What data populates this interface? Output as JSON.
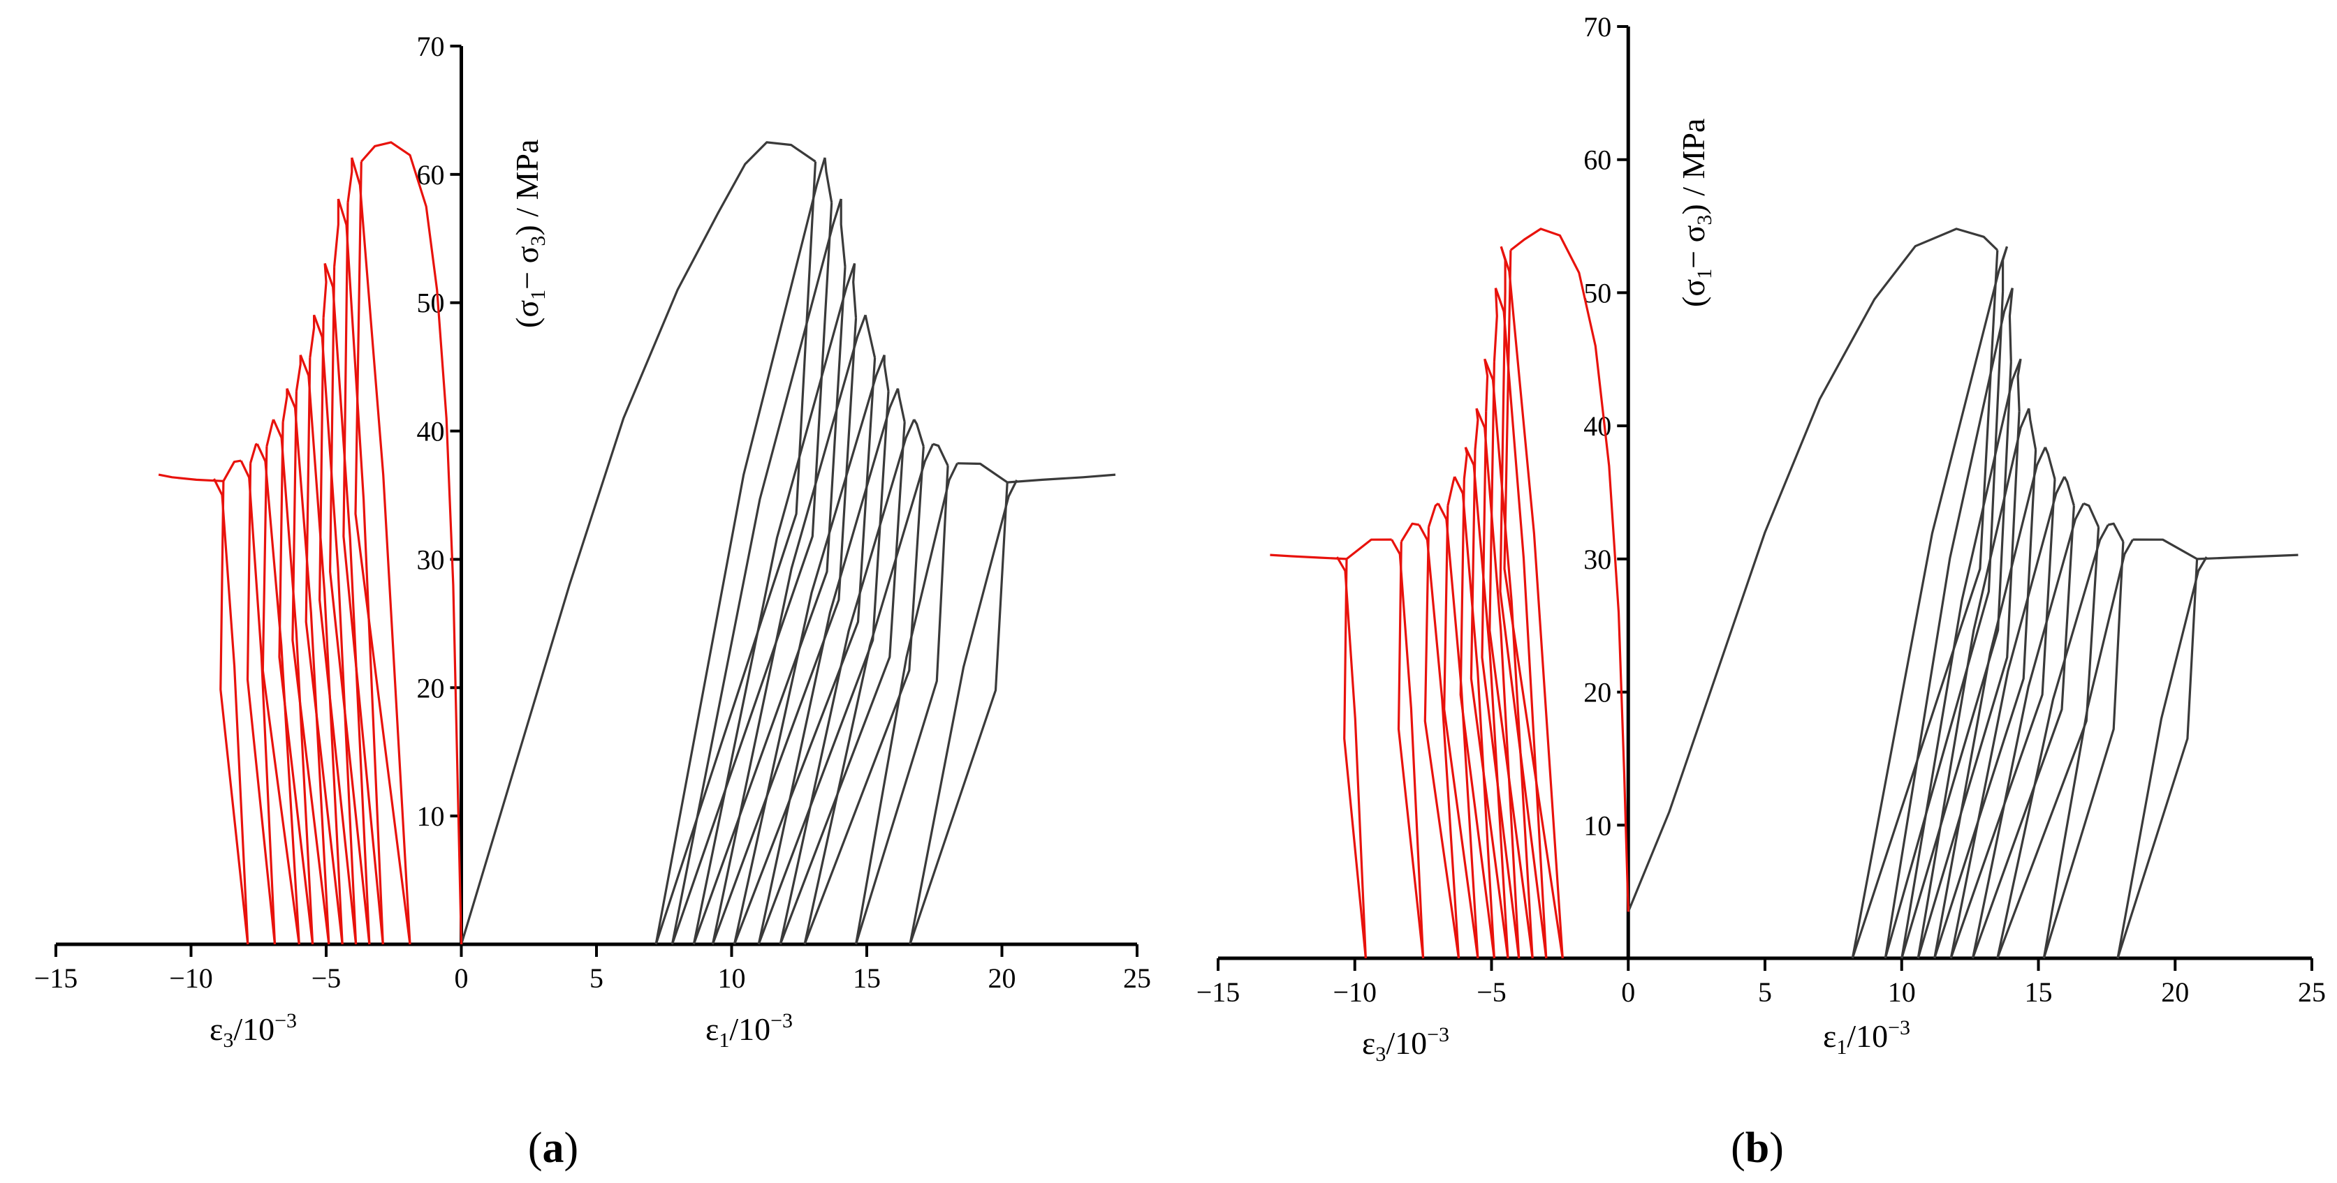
{
  "figure": {
    "panel_labels": [
      {
        "open": "(",
        "letter": "a",
        "close": ")"
      },
      {
        "open": "(",
        "letter": "b",
        "close": ")"
      }
    ]
  },
  "colors": {
    "axial": "#3a3a3a",
    "lateral": "#e8120c",
    "axis": "#000000"
  },
  "chart_data": [
    {
      "type": "line",
      "panel": "a",
      "title": "",
      "xlabel_left": {
        "sym": "ε",
        "sub": "3",
        "mid": "/10",
        "sup": "−3"
      },
      "xlabel_right": {
        "sym": "ε",
        "sub": "1",
        "mid": "/10",
        "sup": "−3"
      },
      "ylabel": {
        "t1": "(σ",
        "s1": "1",
        "t2": "− σ",
        "s2": "3",
        "t3": ") / MPa"
      },
      "xlim": [
        -15,
        25
      ],
      "ylim": [
        0,
        70
      ],
      "xticks": [
        -15,
        -10,
        -5,
        0,
        5,
        10,
        15,
        20,
        25
      ],
      "yticks": [
        10,
        20,
        30,
        40,
        50,
        60,
        70
      ],
      "grid": false,
      "prepeak_axial": [
        [
          0,
          0
        ],
        [
          2,
          14
        ],
        [
          4,
          28
        ],
        [
          6,
          41
        ],
        [
          8,
          51
        ],
        [
          9.5,
          57
        ],
        [
          10.5,
          60.8
        ],
        [
          11.3,
          62.5
        ],
        [
          12.2,
          62.3
        ],
        [
          13.1,
          61.0
        ]
      ],
      "prepeak_lateral": [
        [
          0,
          0
        ],
        [
          -0.15,
          14
        ],
        [
          -0.3,
          28
        ],
        [
          -0.55,
          41
        ],
        [
          -0.9,
          51
        ],
        [
          -1.3,
          57.5
        ],
        [
          -1.9,
          61.5
        ],
        [
          -2.6,
          62.5
        ],
        [
          -3.2,
          62.2
        ],
        [
          -3.7,
          61.0
        ]
      ],
      "axial_cycles": [
        {
          "peak": [
            13.1,
            61.0
          ],
          "zero": 7.2
        },
        {
          "peak": [
            13.7,
            57.8
          ],
          "zero": 7.8
        },
        {
          "peak": [
            14.2,
            52.8
          ],
          "zero": 8.6
        },
        {
          "peak": [
            14.6,
            48.8
          ],
          "zero": 9.3
        },
        {
          "peak": [
            15.3,
            45.7
          ],
          "zero": 10.1
        },
        {
          "peak": [
            15.8,
            43.1
          ],
          "zero": 11.0
        },
        {
          "peak": [
            16.4,
            40.7
          ],
          "zero": 11.8
        },
        {
          "peak": [
            17.1,
            38.8
          ],
          "zero": 12.7
        },
        {
          "peak": [
            18.0,
            37.3
          ],
          "zero": 14.6
        },
        {
          "peak": [
            20.2,
            36.0
          ],
          "zero": 16.6
        }
      ],
      "axial_tail": [
        [
          20.2,
          36.0
        ],
        [
          21.5,
          36.2
        ],
        [
          23.0,
          36.4
        ],
        [
          24.2,
          36.6
        ]
      ],
      "lateral_cycles": [
        {
          "peak": [
            -3.7,
            61.0
          ],
          "zero": -1.9
        },
        {
          "peak": [
            -4.2,
            57.8
          ],
          "zero": -2.9
        },
        {
          "peak": [
            -4.7,
            52.8
          ],
          "zero": -3.4
        },
        {
          "peak": [
            -5.1,
            48.8
          ],
          "zero": -3.9
        },
        {
          "peak": [
            -5.6,
            45.7
          ],
          "zero": -4.4
        },
        {
          "peak": [
            -6.1,
            43.1
          ],
          "zero": -4.9
        },
        {
          "peak": [
            -6.6,
            40.7
          ],
          "zero": -5.5
        },
        {
          "peak": [
            -7.2,
            38.8
          ],
          "zero": -6.0
        },
        {
          "peak": [
            -7.8,
            37.5
          ],
          "zero": -6.9
        },
        {
          "peak": [
            -8.8,
            36.1
          ],
          "zero": -7.9
        }
      ],
      "lateral_tail": [
        [
          -8.8,
          36.1
        ],
        [
          -9.8,
          36.2
        ],
        [
          -10.7,
          36.4
        ],
        [
          -11.2,
          36.6
        ]
      ]
    },
    {
      "type": "line",
      "panel": "b",
      "title": "",
      "xlabel_left": {
        "sym": "ε",
        "sub": "3",
        "mid": "/10",
        "sup": "−3"
      },
      "xlabel_right": {
        "sym": "ε",
        "sub": "1",
        "mid": "/10",
        "sup": "−3"
      },
      "ylabel": {
        "t1": "(σ",
        "s1": "1",
        "t2": "− σ",
        "s2": "3",
        "t3": ") / MPa"
      },
      "xlim": [
        -15,
        25
      ],
      "ylim": [
        0,
        70
      ],
      "xticks": [
        -15,
        -10,
        -5,
        0,
        5,
        10,
        15,
        20,
        25
      ],
      "yticks": [
        10,
        20,
        30,
        40,
        50,
        60,
        70
      ],
      "grid": false,
      "prepeak_axial": [
        [
          0,
          3.5
        ],
        [
          1.5,
          11
        ],
        [
          3,
          20
        ],
        [
          5,
          32
        ],
        [
          7,
          42
        ],
        [
          9,
          49.5
        ],
        [
          10.5,
          53.5
        ],
        [
          12,
          54.8
        ],
        [
          13.0,
          54.2
        ],
        [
          13.5,
          53.2
        ]
      ],
      "prepeak_lateral": [
        [
          0,
          3.5
        ],
        [
          -0.15,
          14
        ],
        [
          -0.35,
          26
        ],
        [
          -0.7,
          37
        ],
        [
          -1.2,
          46
        ],
        [
          -1.8,
          51.5
        ],
        [
          -2.5,
          54.3
        ],
        [
          -3.2,
          54.8
        ],
        [
          -3.8,
          54.0
        ],
        [
          -4.3,
          53.2
        ]
      ],
      "axial_cycles": [
        {
          "peak": [
            13.5,
            53.2
          ],
          "zero": 8.2
        },
        {
          "peak": [
            13.7,
            50.1
          ],
          "zero": 9.4
        },
        {
          "peak": [
            14.0,
            44.8
          ],
          "zero": 10.0
        },
        {
          "peak": [
            14.3,
            41.1
          ],
          "zero": 10.6
        },
        {
          "peak": [
            14.9,
            38.2
          ],
          "zero": 11.2
        },
        {
          "peak": [
            15.6,
            36.0
          ],
          "zero": 11.8
        },
        {
          "peak": [
            16.3,
            34.0
          ],
          "zero": 12.6
        },
        {
          "peak": [
            17.2,
            32.4
          ],
          "zero": 13.5
        },
        {
          "peak": [
            18.1,
            31.3
          ],
          "zero": 15.2
        },
        {
          "peak": [
            20.8,
            30.0
          ],
          "zero": 17.9
        }
      ],
      "axial_tail": [
        [
          20.8,
          30.0
        ],
        [
          22.0,
          30.1
        ],
        [
          23.3,
          30.2
        ],
        [
          24.5,
          30.3
        ]
      ],
      "lateral_cycles": [
        {
          "peak": [
            -4.3,
            53.2
          ],
          "zero": -2.4
        },
        {
          "peak": [
            -4.5,
            50.1
          ],
          "zero": -3.0
        },
        {
          "peak": [
            -4.9,
            44.8
          ],
          "zero": -3.5
        },
        {
          "peak": [
            -5.2,
            41.1
          ],
          "zero": -4.0
        },
        {
          "peak": [
            -5.6,
            38.2
          ],
          "zero": -4.4
        },
        {
          "peak": [
            -6.0,
            36.0
          ],
          "zero": -4.9
        },
        {
          "peak": [
            -6.6,
            34.0
          ],
          "zero": -5.5
        },
        {
          "peak": [
            -7.3,
            32.4
          ],
          "zero": -6.2
        },
        {
          "peak": [
            -8.3,
            31.3
          ],
          "zero": -7.5
        },
        {
          "peak": [
            -10.3,
            30.0
          ],
          "zero": -9.6
        }
      ],
      "lateral_tail": [
        [
          -10.3,
          30.0
        ],
        [
          -11.3,
          30.1
        ],
        [
          -12.3,
          30.2
        ],
        [
          -13.1,
          30.3
        ]
      ]
    }
  ]
}
